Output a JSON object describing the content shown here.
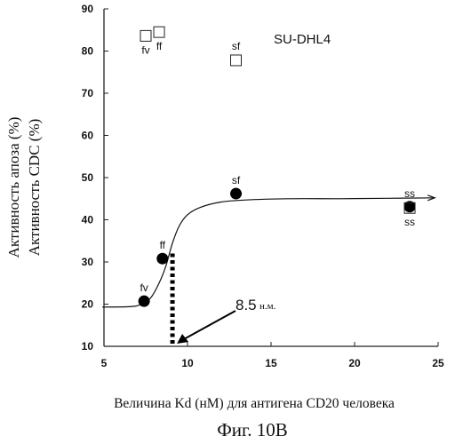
{
  "chart_data": {
    "type": "scatter",
    "title": "SU-DHL4",
    "xlabel": "Величина Kd (нМ) для антигена CD20 человека",
    "ylabel_lines": [
      "Активность апоза (%)",
      "Активность CDC (%)"
    ],
    "caption": "Фиг. 10B",
    "xlim": [
      5,
      25
    ],
    "ylim": [
      10,
      90
    ],
    "x_ticks": [
      5,
      10,
      15,
      20,
      25
    ],
    "y_ticks": [
      10,
      20,
      30,
      40,
      50,
      60,
      70,
      80,
      90
    ],
    "grid": false,
    "series": [
      {
        "marker": "filled-circle",
        "points": [
          {
            "label": "fv",
            "x": 7.4,
            "y": 20.7
          },
          {
            "label": "ff",
            "x": 8.5,
            "y": 30.8
          },
          {
            "label": "sf",
            "x": 12.9,
            "y": 46.2
          },
          {
            "label": "ss",
            "x": 23.3,
            "y": 43.1
          }
        ]
      },
      {
        "marker": "open-square",
        "points": [
          {
            "label": "fv",
            "x": 7.5,
            "y": 83.6
          },
          {
            "label": "ff",
            "x": 8.3,
            "y": 84.5
          },
          {
            "label": "sf",
            "x": 12.9,
            "y": 77.8
          },
          {
            "label": "ss",
            "x": 23.3,
            "y": 42.8
          }
        ]
      }
    ],
    "fit_curve": [
      [
        4.9,
        19.3
      ],
      [
        6.5,
        19.4
      ],
      [
        7.2,
        19.9
      ],
      [
        7.8,
        21.5
      ],
      [
        8.3,
        25.0
      ],
      [
        8.7,
        29.0
      ],
      [
        9.1,
        34.5
      ],
      [
        9.5,
        38.5
      ],
      [
        10.0,
        41.2
      ],
      [
        10.8,
        43.0
      ],
      [
        12.0,
        44.2
      ],
      [
        13.5,
        44.7
      ],
      [
        16.0,
        45.0
      ],
      [
        19.0,
        45.0
      ],
      [
        22.0,
        45.1
      ],
      [
        24.8,
        45.2
      ]
    ],
    "ec50_marker": {
      "x": 9.1,
      "y_top": 32.0
    },
    "annotation": {
      "value": "8.5",
      "unit": "н.м.",
      "target_x": 9.1,
      "target_y": 10.0
    }
  }
}
